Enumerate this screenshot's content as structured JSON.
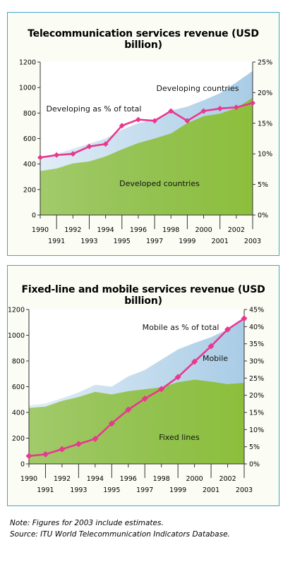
{
  "chart_data": [
    {
      "type": "area",
      "title": "Telecommunication services revenue (USD billion)",
      "x": [
        "1990",
        "1991",
        "1992",
        "1993",
        "1994",
        "1995",
        "1996",
        "1997",
        "1998",
        "1999",
        "2000",
        "2001",
        "2002",
        "2003"
      ],
      "ylim": [
        0,
        1200
      ],
      "yticks": [
        "0",
        "200",
        "400",
        "600",
        "800",
        "1000",
        "1200"
      ],
      "y2lim": [
        0,
        25
      ],
      "y2ticks": [
        "0%",
        "5%",
        "10%",
        "15%",
        "20%",
        "25%"
      ],
      "series": [
        {
          "name": "Developed countries",
          "kind": "area",
          "color": "#8dbf3c",
          "values": [
            345,
            365,
            405,
            420,
            460,
            515,
            565,
            600,
            640,
            720,
            775,
            795,
            840,
            920
          ]
        },
        {
          "name": "Developing countries",
          "kind": "area",
          "color": "#a9cce6",
          "values": [
            455,
            480,
            520,
            560,
            600,
            670,
            720,
            750,
            820,
            850,
            900,
            955,
            1040,
            1130
          ]
        },
        {
          "name": "Developing as % of total",
          "kind": "line",
          "axis": "right",
          "color": "#e8388f",
          "values": [
            9.4,
            9.8,
            10.0,
            11.2,
            11.6,
            14.6,
            15.6,
            15.4,
            17.0,
            15.4,
            17.0,
            17.4,
            17.6,
            18.3
          ]
        }
      ]
    },
    {
      "type": "area",
      "title": "Fixed-line and mobile services revenue (USD billion)",
      "x": [
        "1990",
        "1991",
        "1992",
        "1993",
        "1994",
        "1995",
        "1996",
        "1997",
        "1998",
        "1999",
        "2000",
        "2001",
        "2002",
        "2003"
      ],
      "ylim": [
        0,
        1200
      ],
      "yticks": [
        "0",
        "200",
        "400",
        "600",
        "800",
        "1000",
        "1200"
      ],
      "y2lim": [
        0,
        45
      ],
      "y2ticks": [
        "0%",
        "5%",
        "10%",
        "15%",
        "20%",
        "25%",
        "30%",
        "35%",
        "40%",
        "45%"
      ],
      "series": [
        {
          "name": "Fixed lines",
          "kind": "area",
          "color": "#8dbf3c",
          "values": [
            435,
            445,
            490,
            520,
            560,
            540,
            565,
            580,
            595,
            635,
            655,
            640,
            620,
            630
          ]
        },
        {
          "name": "Mobile",
          "kind": "area",
          "color": "#a9cce6",
          "values": [
            455,
            470,
            510,
            555,
            615,
            600,
            680,
            730,
            810,
            890,
            940,
            985,
            1045,
            1130
          ]
        },
        {
          "name": "Mobile as % of total",
          "kind": "line",
          "axis": "right",
          "color": "#e8388f",
          "values": [
            2.3,
            2.8,
            4.3,
            5.8,
            7.3,
            11.8,
            15.8,
            19.0,
            21.8,
            25.3,
            29.8,
            34.3,
            39.2,
            42.4
          ]
        }
      ]
    }
  ],
  "labels": {
    "c1_developing": "Developing countries",
    "c1_percent": "Developing as % of total",
    "c1_developed": "Developed countries",
    "c2_percent": "Mobile as % of total",
    "c2_mobile": "Mobile",
    "c2_fixed": "Fixed lines"
  },
  "notes": {
    "line1": "Note: Figures for 2003 include estimates.",
    "line2": "Source: ITU World Telecommunication Indicators Database."
  }
}
